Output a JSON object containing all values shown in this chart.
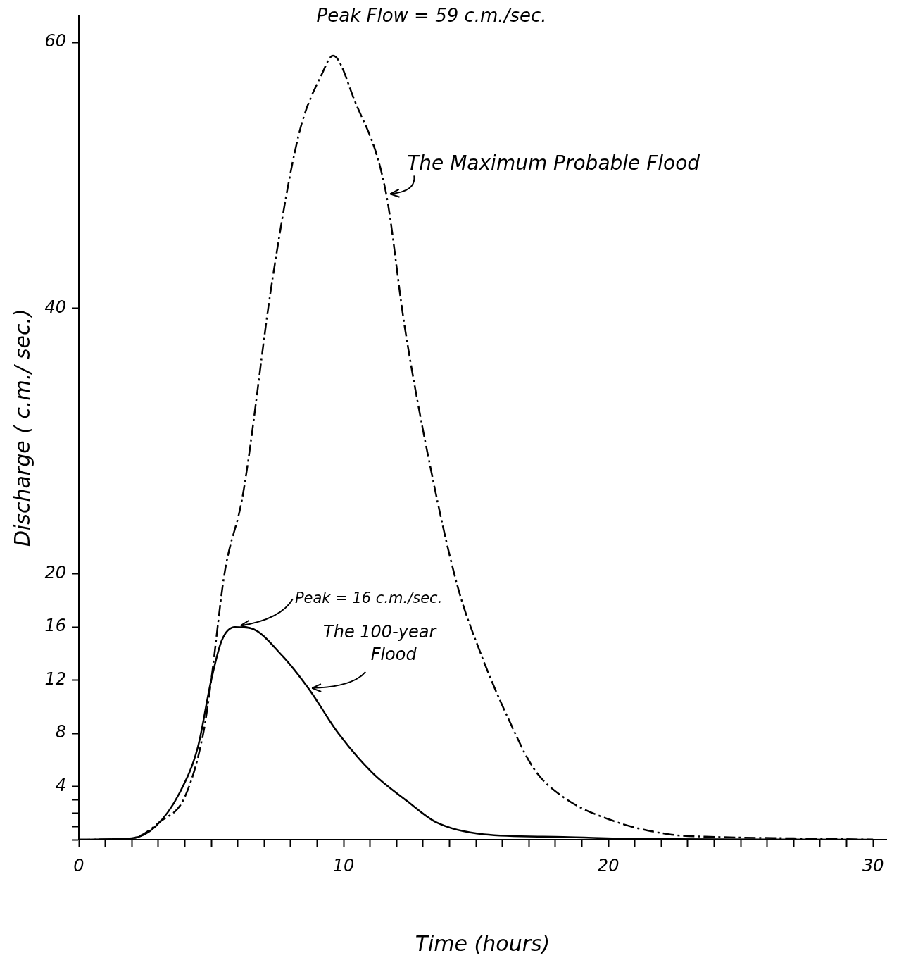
{
  "chart_data": {
    "type": "line",
    "xlabel": "Time (hours)",
    "ylabel": "Discharge ( c.m./ sec.)",
    "xlim": [
      0,
      30.5
    ],
    "ylim": [
      0,
      62
    ],
    "xticks": [
      0,
      {
        "value": 1,
        "label": null
      },
      {
        "value": 2,
        "label": null
      },
      {
        "value": 3,
        "label": null
      },
      {
        "value": 4,
        "label": null
      },
      {
        "value": 5,
        "label": null
      },
      {
        "value": 6,
        "label": null
      },
      {
        "value": 7,
        "label": null
      },
      {
        "value": 8,
        "label": null
      },
      {
        "value": 9,
        "label": null
      },
      10,
      {
        "value": 11,
        "label": null
      },
      {
        "value": 12,
        "label": null
      },
      {
        "value": 13,
        "label": null
      },
      {
        "value": 14,
        "label": null
      },
      {
        "value": 15,
        "label": null
      },
      {
        "value": 16,
        "label": null
      },
      {
        "value": 17,
        "label": null
      },
      {
        "value": 18,
        "label": null
      },
      {
        "value": 19,
        "label": null
      },
      20,
      {
        "value": 21,
        "label": null
      },
      {
        "value": 22,
        "label": null
      },
      {
        "value": 23,
        "label": null
      },
      {
        "value": 24,
        "label": null
      },
      {
        "value": 25,
        "label": null
      },
      {
        "value": 26,
        "label": null
      },
      {
        "value": 27,
        "label": null
      },
      {
        "value": 28,
        "label": null
      },
      {
        "value": 29,
        "label": null
      },
      30
    ],
    "yticks": [
      {
        "value": 0,
        "label": null
      },
      {
        "value": 1,
        "label": null
      },
      {
        "value": 2,
        "label": null
      },
      {
        "value": 3,
        "label": null
      },
      4,
      8,
      12,
      16,
      20,
      40,
      60
    ],
    "marker": "none",
    "legend": false,
    "grid": false,
    "series": [
      {
        "name": "The Maximum Probable Flood",
        "color": "#000000",
        "line_style": "dashed",
        "x": [
          0,
          2,
          3.1,
          4,
          4.7,
          5,
          5.5,
          6.2,
          7.3,
          8.3,
          9.2,
          9.6,
          10.4,
          11.6,
          12.3,
          13.2,
          14.3,
          15.2,
          16.2,
          17.2,
          18.3,
          20.2,
          22.3,
          24.1,
          27,
          30
        ],
        "values": [
          0,
          0.1,
          1.4,
          3.2,
          8,
          12,
          20,
          26,
          42,
          53,
          57.7,
          59,
          55.7,
          48.7,
          38.7,
          28.8,
          19.1,
          13.9,
          9.2,
          5.3,
          3.2,
          1.4,
          0.4,
          0.2,
          0.1,
          0
        ]
      },
      {
        "name": "The 100-year Flood",
        "color": "#000000",
        "line_style": "solid",
        "x": [
          0,
          2,
          2.9,
          3.8,
          4.5,
          5,
          5.4,
          5.9,
          6.5,
          7.7,
          8.7,
          9.8,
          11.1,
          12.4,
          13.5,
          15.3,
          18.3,
          21,
          30
        ],
        "values": [
          0,
          0.1,
          1,
          3.5,
          7,
          12,
          15,
          16,
          15.9,
          13.8,
          11.3,
          8,
          5,
          2.9,
          1.3,
          0.4,
          0.2,
          0.05,
          0
        ]
      }
    ],
    "annotations": [
      {
        "text": "Peak Flow = 59 c.m./sec.",
        "x": 9.6,
        "y": 59
      },
      {
        "text": "Peak = 16 c.m./sec.",
        "x": 5.9,
        "y": 16
      }
    ]
  }
}
